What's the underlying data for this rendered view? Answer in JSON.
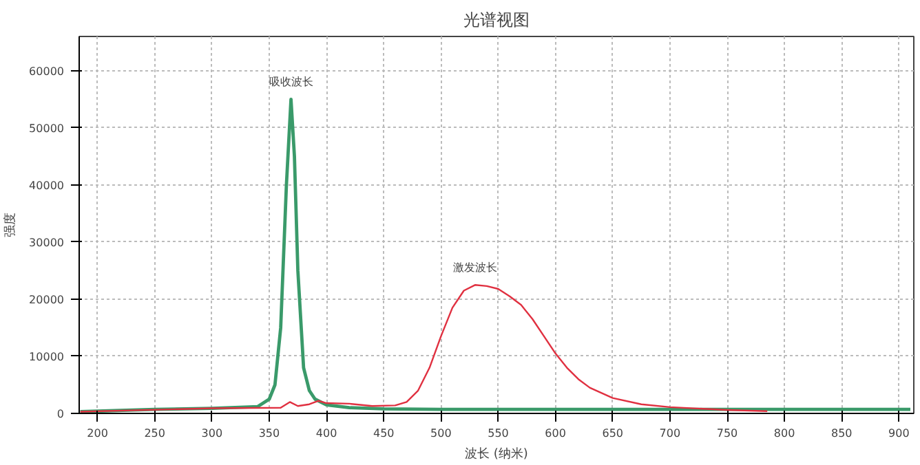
{
  "chart_data": {
    "type": "line",
    "title": "光谱视图",
    "xlabel": "波长 (纳米)",
    "ylabel": "强度",
    "xlim": [
      184,
      913
    ],
    "ylim": [
      0,
      66000
    ],
    "xticks": [
      200,
      250,
      300,
      350,
      400,
      450,
      500,
      550,
      600,
      650,
      700,
      750,
      800,
      850,
      900
    ],
    "yticks": [
      0,
      10000,
      20000,
      30000,
      40000,
      50000,
      60000
    ],
    "grid": true,
    "line_style": "solid",
    "marker": "none",
    "annotations": [
      "吸收波长",
      "激发波长"
    ],
    "series": [
      {
        "color": "#3a9a6a",
        "x": [
          185,
          250,
          300,
          340,
          350,
          355,
          360,
          365,
          369,
          372,
          375,
          380,
          385,
          390,
          400,
          420,
          450,
          500,
          600,
          700,
          800,
          910
        ],
        "values": [
          300,
          700,
          900,
          1200,
          2500,
          5000,
          15000,
          40000,
          55000,
          45000,
          25000,
          8000,
          4000,
          2500,
          1500,
          1000,
          800,
          700,
          700,
          700,
          700,
          700
        ]
      },
      {
        "color": "#e03040",
        "x": [
          185,
          300,
          360,
          368,
          375,
          385,
          393,
          400,
          420,
          440,
          460,
          470,
          480,
          490,
          500,
          510,
          520,
          530,
          540,
          550,
          560,
          570,
          580,
          590,
          600,
          610,
          620,
          630,
          650,
          675,
          700,
          750,
          785
        ],
        "values": [
          300,
          900,
          1000,
          2000,
          1300,
          1600,
          2200,
          1800,
          1700,
          1300,
          1400,
          2000,
          4000,
          8000,
          13500,
          18500,
          21500,
          22500,
          22300,
          21800,
          20500,
          19000,
          16500,
          13500,
          10500,
          8000,
          6000,
          4500,
          2700,
          1600,
          1100,
          600,
          400
        ]
      }
    ]
  }
}
